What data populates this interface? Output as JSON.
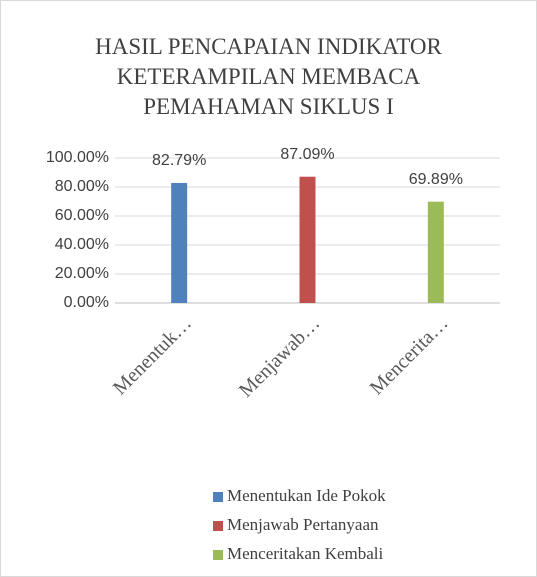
{
  "chart_data": {
    "type": "bar",
    "title": "HASIL PENCAPAIAN INDIKATOR KETERAMPILAN MEMBACA PEMAHAMAN SIKLUS I",
    "categories": [
      "Menentuk…",
      "Menjawab…",
      "Mencerita…"
    ],
    "series": [
      {
        "name": "Menentukan Ide Pokok",
        "color": "#4f81bd",
        "values": [
          82.79,
          null,
          null
        ],
        "value_labels": [
          "82.79%",
          null,
          null
        ]
      },
      {
        "name": "Menjawab Pertanyaan",
        "color": "#c0504d",
        "values": [
          null,
          87.09,
          null
        ],
        "value_labels": [
          null,
          "87.09%",
          null
        ]
      },
      {
        "name": "Menceritakan Kembali",
        "color": "#9bbb59",
        "values": [
          null,
          null,
          69.89
        ],
        "value_labels": [
          null,
          null,
          "69.89%"
        ]
      }
    ],
    "ylim": [
      0,
      100
    ],
    "yticks": [
      {
        "value": 0,
        "label": "0.00%"
      },
      {
        "value": 20,
        "label": "20.00%"
      },
      {
        "value": 40,
        "label": "40.00%"
      },
      {
        "value": 60,
        "label": "60.00%"
      },
      {
        "value": 80,
        "label": "80.00%"
      },
      {
        "value": 100,
        "label": "100.00%"
      }
    ],
    "grid": true,
    "legend": "bottom"
  }
}
